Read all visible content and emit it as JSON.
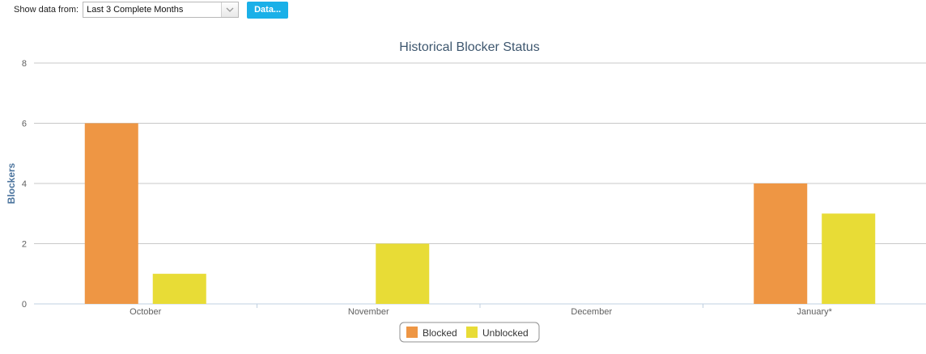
{
  "toolbar": {
    "label": "Show data from:",
    "period_value": "Last 3 Complete Months",
    "data_button_label": "Data..."
  },
  "colors": {
    "blocked": "#ee9644",
    "unblocked": "#e8dc36",
    "gridline": "#c8c8c8",
    "axis_line": "#c0d0e0"
  },
  "chart_data": {
    "type": "bar",
    "title": "Historical Blocker Status",
    "xlabel": "",
    "ylabel": "Blockers",
    "ylim": [
      0,
      8
    ],
    "yticks": [
      0,
      2,
      4,
      6,
      8
    ],
    "grid": true,
    "legend_position": "bottom-center",
    "categories": [
      "October",
      "November",
      "December",
      "January*"
    ],
    "series": [
      {
        "name": "Blocked",
        "values": [
          6,
          0,
          0,
          4
        ]
      },
      {
        "name": "Unblocked",
        "values": [
          1,
          2,
          0,
          3
        ]
      }
    ]
  }
}
